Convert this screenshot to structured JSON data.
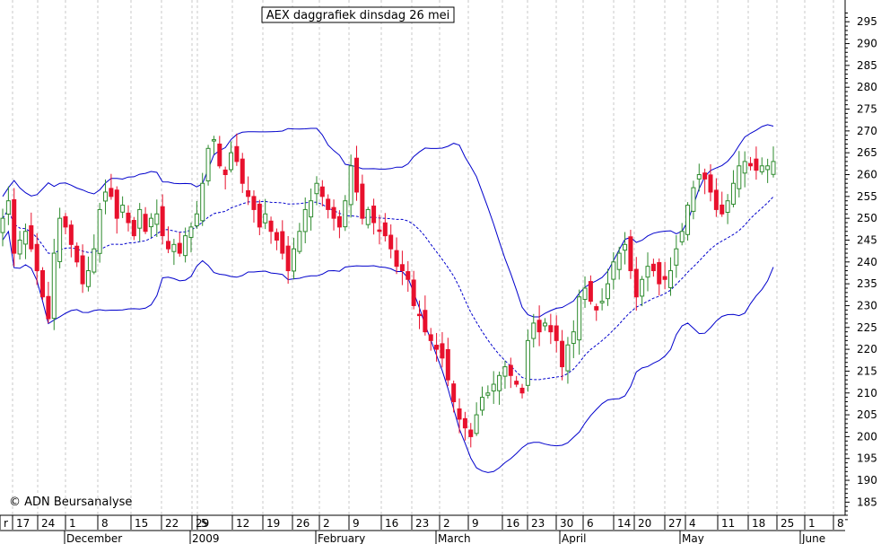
{
  "chart_data": {
    "type": "candlestick",
    "title": "AEX daggrafiek dinsdag 26 mei",
    "copyright": "© ADN Beursanalyse",
    "ylim": [
      180,
      297
    ],
    "y_ticks": [
      185,
      190,
      195,
      200,
      205,
      210,
      215,
      220,
      225,
      230,
      235,
      240,
      245,
      250,
      255,
      260,
      265,
      270,
      275,
      280,
      285,
      290,
      295
    ],
    "x_day_ticks": [
      "r",
      "17",
      "24",
      "1",
      "8",
      "15",
      "22",
      "29",
      "5",
      "12",
      "19",
      "26",
      "2",
      "9",
      "16",
      "23",
      "2",
      "9",
      "16",
      "23",
      "30",
      "6",
      "14",
      "20",
      "27",
      "4",
      "11",
      "18",
      "25",
      "1",
      "8"
    ],
    "x_month_labels": [
      "December",
      "2009",
      "February",
      "March",
      "April",
      "May",
      "June"
    ],
    "colors": {
      "up": "#2e8b2e",
      "down": "#e8112d",
      "band": "#0000cc",
      "grid": "#c8c8c8",
      "axis": "#000000"
    },
    "indicators": [
      "Bollinger upper band",
      "moving average (dashed)",
      "Bollinger lower band"
    ],
    "sessions": [
      "11-11",
      "11-12",
      "11-13",
      "11-14",
      "11-17",
      "11-18",
      "11-19",
      "11-20",
      "11-21",
      "11-24",
      "11-25",
      "11-26",
      "11-27",
      "11-28",
      "12-01",
      "12-02",
      "12-03",
      "12-04",
      "12-05",
      "12-08",
      "12-09",
      "12-10",
      "12-11",
      "12-12",
      "12-15",
      "12-16",
      "12-17",
      "12-18",
      "12-19",
      "12-22",
      "12-23",
      "12-24",
      "12-29",
      "12-30",
      "12-31",
      "01-02",
      "01-05",
      "01-06",
      "01-07",
      "01-08",
      "01-09",
      "01-12",
      "01-13",
      "01-14",
      "01-15",
      "01-16",
      "01-19",
      "01-20",
      "01-21",
      "01-22",
      "01-23",
      "01-26",
      "01-27",
      "01-28",
      "01-29",
      "01-30",
      "02-02",
      "02-03",
      "02-04",
      "02-05",
      "02-06",
      "02-09",
      "02-10",
      "02-11",
      "02-12",
      "02-13",
      "02-16",
      "02-17",
      "02-18",
      "02-19",
      "02-20",
      "02-23",
      "02-24",
      "02-25",
      "02-26",
      "02-27",
      "03-02",
      "03-03",
      "03-04",
      "03-05",
      "03-06",
      "03-09",
      "03-10",
      "03-11",
      "03-12",
      "03-13",
      "03-16",
      "03-17",
      "03-18",
      "03-19",
      "03-20",
      "03-23",
      "03-24",
      "03-25",
      "03-26",
      "03-27",
      "03-30",
      "03-31",
      "04-01",
      "04-02",
      "04-03",
      "04-06",
      "04-07",
      "04-08",
      "04-09",
      "04-14",
      "04-15",
      "04-16",
      "04-17",
      "04-20",
      "04-21",
      "04-22",
      "04-23",
      "04-24",
      "04-27",
      "04-28",
      "04-29",
      "04-30",
      "05-04",
      "05-05",
      "05-06",
      "05-07",
      "05-08",
      "05-11",
      "05-12",
      "05-13",
      "05-14",
      "05-15",
      "05-18",
      "05-19",
      "05-20",
      "05-21",
      "05-22",
      "05-25",
      "05-26"
    ],
    "close": [
      250,
      254,
      242,
      245,
      247,
      243,
      238,
      232,
      227,
      242,
      250,
      248,
      244,
      240,
      235,
      238,
      243,
      252,
      256,
      255,
      250,
      253,
      249,
      246,
      252,
      247,
      250,
      251,
      246,
      243,
      244,
      242,
      246,
      248,
      251,
      258,
      266,
      268,
      262,
      260,
      265,
      263,
      258,
      255,
      252,
      248,
      251,
      247,
      245,
      242,
      238,
      243,
      247,
      252,
      254,
      258,
      255,
      252,
      250,
      248,
      254,
      262,
      256,
      250,
      252,
      249,
      247,
      246,
      243,
      239,
      238,
      236,
      230,
      228,
      224,
      222,
      220,
      218,
      213,
      208,
      204,
      202,
      200,
      205,
      209,
      210,
      212,
      214,
      216,
      214,
      212,
      210,
      222,
      226,
      224,
      226,
      224,
      222,
      216,
      221,
      224,
      232,
      234,
      231,
      229,
      231,
      235,
      240,
      242,
      244,
      238,
      232,
      236,
      239,
      238,
      235,
      236,
      238,
      243,
      247,
      253,
      257,
      260,
      259,
      256,
      252,
      251,
      254,
      258,
      262,
      263,
      262,
      261,
      262,
      262,
      263
    ]
  }
}
